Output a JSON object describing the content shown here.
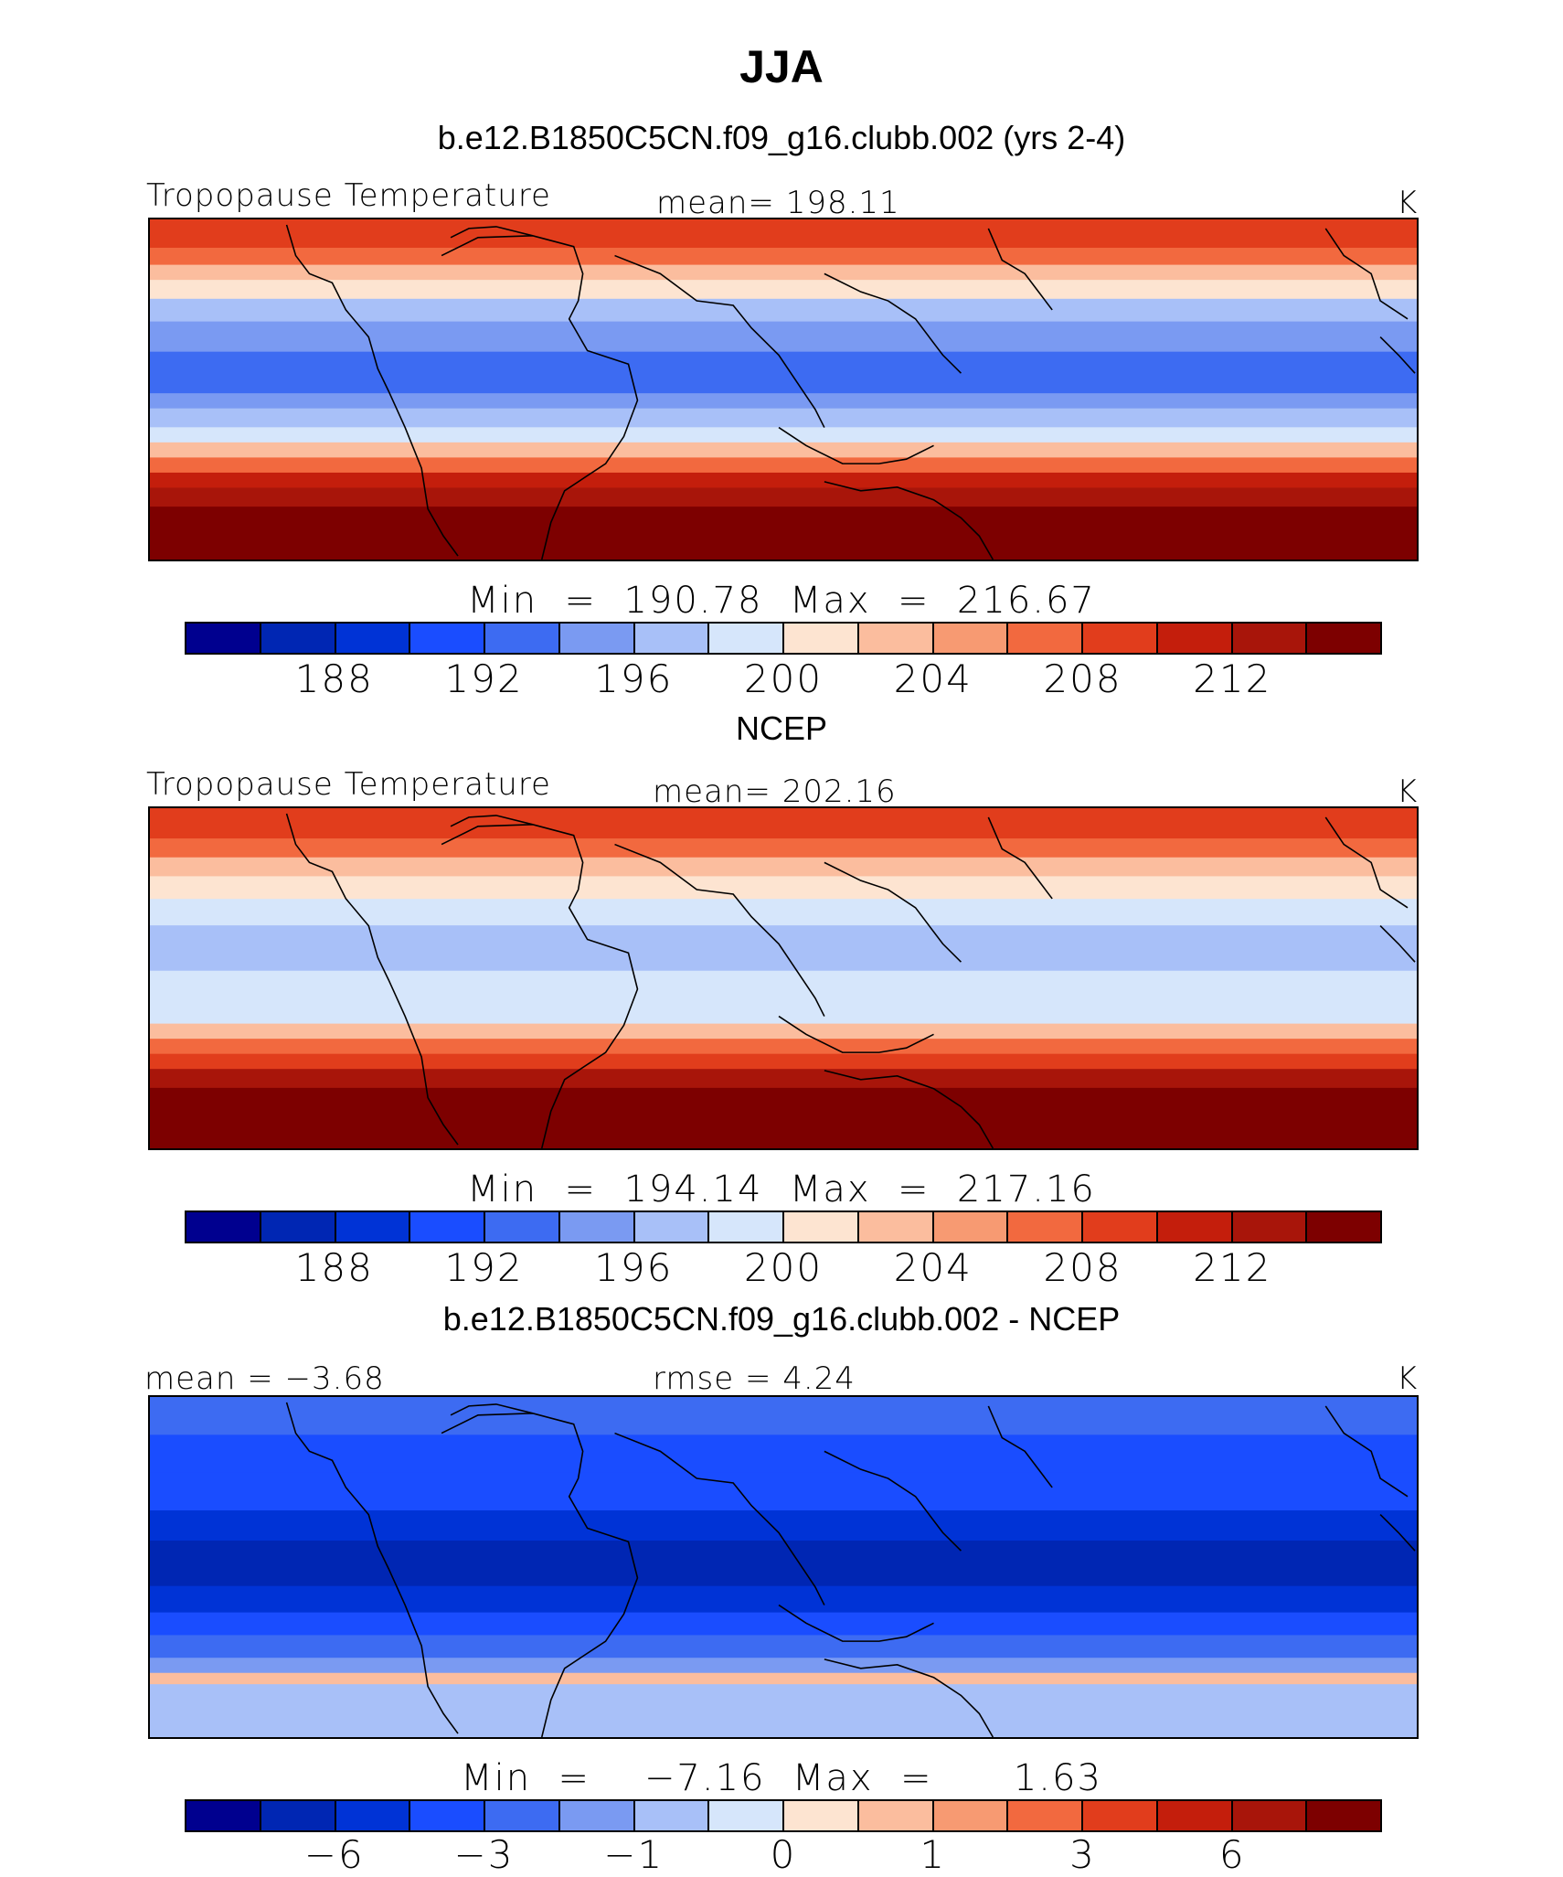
{
  "title": "JJA",
  "colors": [
    "#00008f",
    "#0026b3",
    "#0033d6",
    "#1a4dff",
    "#3d6bf2",
    "#7a9af2",
    "#a8c0f8",
    "#d6e6fb",
    "#fde4d1",
    "#fbbd9e",
    "#f79a72",
    "#f2693f",
    "#e13d1c",
    "#c41e0c",
    "#a8150a",
    "#7d0000"
  ],
  "chart_data": [
    {
      "type": "heatmap",
      "panel_title": "b.e12.B1850C5CN.f09_g16.clubb.002 (yrs 2-4)",
      "left_label": "Tropopause Temperature",
      "center_label": "mean=  198.11",
      "units": "K",
      "stats": "Min  =  190.78  Max  =  216.67",
      "ticks": [
        "188",
        "192",
        "196",
        "200",
        "204",
        "208",
        "212"
      ],
      "bands": [
        {
          "lat_top": 90,
          "value": 208
        },
        {
          "lat_top": 75,
          "value": 206
        },
        {
          "lat_top": 66,
          "value": 203
        },
        {
          "lat_top": 58,
          "value": 200
        },
        {
          "lat_top": 48,
          "value": 197
        },
        {
          "lat_top": 36,
          "value": 194
        },
        {
          "lat_top": 20,
          "value": 193
        },
        {
          "lat_top": -2,
          "value": 194
        },
        {
          "lat_top": -10,
          "value": 196
        },
        {
          "lat_top": -20,
          "value": 199
        },
        {
          "lat_top": -28,
          "value": 203
        },
        {
          "lat_top": -36,
          "value": 207
        },
        {
          "lat_top": -44,
          "value": 210
        },
        {
          "lat_top": -52,
          "value": 212
        },
        {
          "lat_top": -62,
          "value": 214
        }
      ]
    },
    {
      "type": "heatmap",
      "panel_title": "NCEP",
      "left_label": "Tropopause Temperature",
      "center_label": "mean=  202.16",
      "units": "K",
      "stats": "Min  =  194.14  Max  =  217.16",
      "ticks": [
        "188",
        "192",
        "196",
        "200",
        "204",
        "208",
        "212"
      ],
      "bands": [
        {
          "lat_top": 90,
          "value": 208
        },
        {
          "lat_top": 74,
          "value": 206
        },
        {
          "lat_top": 64,
          "value": 203
        },
        {
          "lat_top": 54,
          "value": 201
        },
        {
          "lat_top": 42,
          "value": 198
        },
        {
          "lat_top": 28,
          "value": 197
        },
        {
          "lat_top": 4,
          "value": 198
        },
        {
          "lat_top": -14,
          "value": 199
        },
        {
          "lat_top": -24,
          "value": 202
        },
        {
          "lat_top": -32,
          "value": 206
        },
        {
          "lat_top": -40,
          "value": 209
        },
        {
          "lat_top": -48,
          "value": 212
        },
        {
          "lat_top": -58,
          "value": 214
        },
        {
          "lat_top": -66,
          "value": 216
        }
      ]
    },
    {
      "type": "heatmap",
      "panel_title": "b.e12.B1850C5CN.f09_g16.clubb.002 - NCEP",
      "left_label": "mean =   −3.68",
      "center_label": "rmse =     4.24",
      "units": "K",
      "stats": "Min  =    −7.16  Max  =      1.63",
      "ticks": [
        "−6",
        "−3",
        "−1",
        "0",
        "1",
        "3",
        "6"
      ],
      "bands": [
        {
          "lat_top": 90,
          "value": -3
        },
        {
          "lat_top": 70,
          "value": -3.5
        },
        {
          "lat_top": 50,
          "value": -4.5
        },
        {
          "lat_top": 30,
          "value": -5.5
        },
        {
          "lat_top": 14,
          "value": -6.5
        },
        {
          "lat_top": -10,
          "value": -5.5
        },
        {
          "lat_top": -24,
          "value": -4.5
        },
        {
          "lat_top": -36,
          "value": -3
        },
        {
          "lat_top": -48,
          "value": -1.5
        },
        {
          "lat_top": -56,
          "value": 0.5
        },
        {
          "lat_top": -62,
          "value": -1
        }
      ]
    }
  ]
}
